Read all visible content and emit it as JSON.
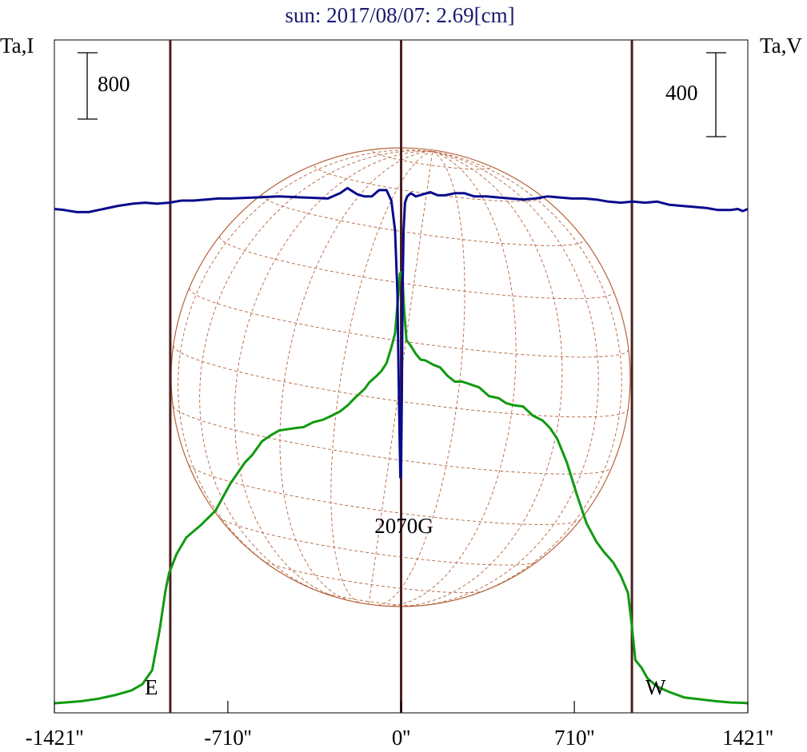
{
  "chart_data": {
    "type": "line",
    "title": "sun: 2017/08/07: 2.69[cm]",
    "left_axis_label": "Ta,I",
    "right_axis_label": "Ta,V",
    "left_scale_bar": {
      "label": "800",
      "value": 800
    },
    "right_scale_bar": {
      "label": "400",
      "value": 400
    },
    "x_ticks": [
      {
        "value": -1421,
        "label": "-1421''"
      },
      {
        "value": -710,
        "label": "-710''"
      },
      {
        "value": 0,
        "label": "0''"
      },
      {
        "value": 710,
        "label": "710''"
      },
      {
        "value": 1421,
        "label": "1421''"
      }
    ],
    "xlim": [
      -1421,
      1421
    ],
    "limb_markers": [
      {
        "value": -946,
        "label": "E"
      },
      {
        "value": 0,
        "label": ""
      },
      {
        "value": 946,
        "label": "W"
      }
    ],
    "annotation": "2070G",
    "colors": {
      "intensity": "#109a10",
      "polarization": "#0a0a8c",
      "limb": "#4a2020",
      "disk": "#b4643c",
      "title": "#1a1a6e"
    },
    "series": [
      {
        "name": "I",
        "axis": "left",
        "x": [
          -1421,
          -1375,
          -1310,
          -1240,
          -1170,
          -1105,
          -1060,
          -1020,
          -990,
          -965,
          -951,
          -940,
          -920,
          -880,
          -820,
          -760,
          -700,
          -640,
          -610,
          -570,
          -530,
          -500,
          -430,
          -400,
          -360,
          -320,
          -290,
          -250,
          -220,
          -190,
          -150,
          -130,
          -100,
          -80,
          -60,
          -40,
          -25,
          -12,
          -5,
          0,
          5,
          12,
          22,
          40,
          60,
          80,
          100,
          130,
          160,
          190,
          220,
          250,
          280,
          320,
          360,
          400,
          430,
          460,
          500,
          540,
          580,
          610,
          640,
          680,
          720,
          760,
          800,
          830,
          870,
          900,
          930,
          945,
          960,
          985,
          1010,
          1050,
          1100,
          1160,
          1230,
          1290,
          1350,
          1400,
          1421
        ],
        "y": [
          0,
          10,
          25,
          55,
          100,
          155,
          230,
          400,
          880,
          1370,
          1570,
          1650,
          1800,
          2000,
          2150,
          2325,
          2650,
          2905,
          2995,
          3160,
          3240,
          3290,
          3320,
          3330,
          3390,
          3420,
          3460,
          3520,
          3590,
          3680,
          3790,
          3870,
          3950,
          4010,
          4100,
          4290,
          4460,
          4900,
          5180,
          5200,
          5170,
          4760,
          4380,
          4310,
          4215,
          4145,
          4135,
          4085,
          4050,
          3950,
          3880,
          3880,
          3850,
          3810,
          3705,
          3680,
          3620,
          3595,
          3580,
          3470,
          3410,
          3320,
          3190,
          2900,
          2520,
          2170,
          1950,
          1830,
          1695,
          1540,
          1330,
          950,
          520,
          430,
          300,
          200,
          135,
          70,
          45,
          25,
          10,
          5,
          0
        ]
      },
      {
        "name": "V",
        "axis": "right",
        "x": [
          -1421,
          -1380,
          -1330,
          -1280,
          -1220,
          -1160,
          -1100,
          -1050,
          -1000,
          -950,
          -900,
          -850,
          -800,
          -750,
          -700,
          -600,
          -500,
          -400,
          -300,
          -250,
          -220,
          -180,
          -150,
          -120,
          -90,
          -60,
          -40,
          -25,
          -15,
          -10,
          -6,
          -3,
          0,
          3,
          6,
          10,
          16,
          25,
          40,
          60,
          90,
          120,
          150,
          180,
          220,
          260,
          300,
          350,
          400,
          450,
          500,
          550,
          600,
          650,
          700,
          750,
          800,
          850,
          900,
          950,
          1000,
          1050,
          1100,
          1150,
          1200,
          1250,
          1300,
          1350,
          1380,
          1400,
          1421
        ],
        "y": [
          1800,
          1795,
          1785,
          1785,
          1800,
          1815,
          1825,
          1830,
          1825,
          1830,
          1840,
          1840,
          1845,
          1850,
          1850,
          1855,
          1860,
          1855,
          1850,
          1875,
          1900,
          1870,
          1860,
          1860,
          1890,
          1890,
          1840,
          1700,
          1400,
          1000,
          700,
          520,
          560,
          900,
          1400,
          1700,
          1830,
          1860,
          1875,
          1860,
          1870,
          1880,
          1865,
          1865,
          1875,
          1875,
          1860,
          1860,
          1855,
          1850,
          1845,
          1850,
          1860,
          1855,
          1850,
          1850,
          1845,
          1835,
          1830,
          1835,
          1830,
          1835,
          1820,
          1815,
          1810,
          1805,
          1795,
          1795,
          1800,
          1790,
          1800
        ]
      }
    ],
    "left_ylim": [
      0,
      6000
    ],
    "right_ylim": [
      0,
      3000
    ]
  }
}
